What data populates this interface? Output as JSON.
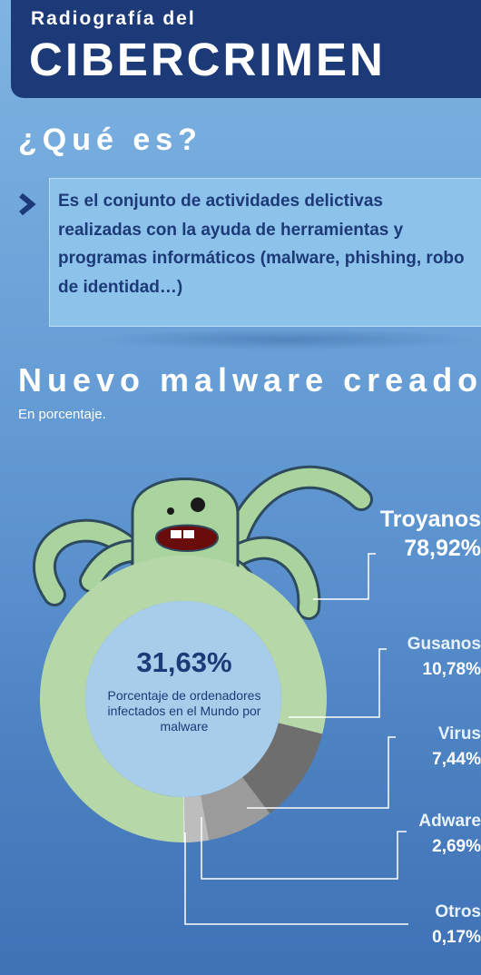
{
  "header": {
    "subtitle": "Radiografía del",
    "title": "CIBERCRIMEN"
  },
  "definition": {
    "heading": "¿Qué es?",
    "text": "Es el conjunto de actividades delictivas realizadas con la ayuda de herramientas y programas informáticos (malware, phishing, robo de identidad…)"
  },
  "center": {
    "value": "31,63%",
    "label": "Porcentaje de ordenadores infectados en el Mundo por malware"
  },
  "chart_data": {
    "type": "pie",
    "title": "Nuevo malware creado",
    "subtitle": "En porcentaje.",
    "categories": [
      "Troyanos",
      "Gusanos",
      "Virus",
      "Adware",
      "Otros"
    ],
    "values": [
      78.92,
      10.78,
      7.44,
      2.69,
      0.17
    ],
    "value_labels": [
      "78,92%",
      "10,78%",
      "7,44%",
      "2,69%",
      "0,17%"
    ],
    "colors": [
      "#b6d8a8",
      "#6e6e6e",
      "#9b9b9b",
      "#bdbdbd",
      "#e0e0e0"
    ]
  }
}
